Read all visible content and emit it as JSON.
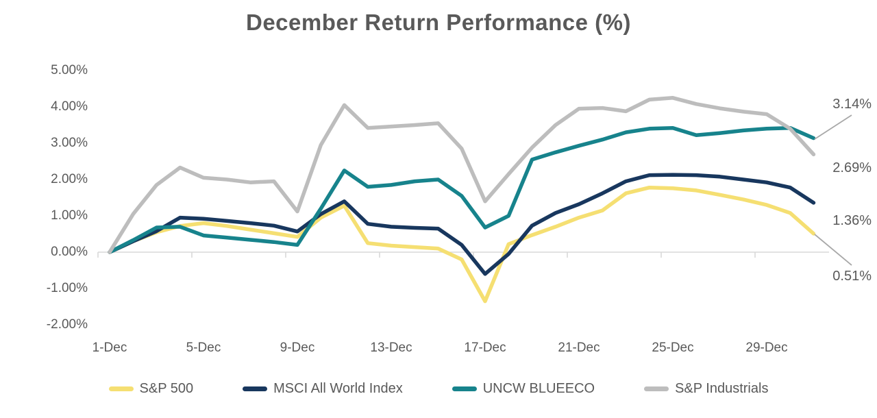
{
  "chart_data": {
    "type": "line",
    "title": "December Return Performance (%)",
    "xlabel": "",
    "ylabel": "",
    "ylim": [
      -2,
      5
    ],
    "grid": false,
    "legend_position": "bottom",
    "y_ticks": [
      "5.00%",
      "4.00%",
      "3.00%",
      "2.00%",
      "1.00%",
      "0.00%",
      "-1.00%",
      "-2.00%"
    ],
    "x_tick_labels": [
      "1-Dec",
      "5-Dec",
      "9-Dec",
      "13-Dec",
      "17-Dec",
      "21-Dec",
      "25-Dec",
      "29-Dec"
    ],
    "x_tick_days": [
      1,
      5,
      9,
      13,
      17,
      21,
      25,
      29
    ],
    "categories": [
      "1-Dec",
      "2-Dec",
      "3-Dec",
      "4-Dec",
      "5-Dec",
      "6-Dec",
      "7-Dec",
      "8-Dec",
      "9-Dec",
      "10-Dec",
      "11-Dec",
      "12-Dec",
      "13-Dec",
      "14-Dec",
      "15-Dec",
      "16-Dec",
      "17-Dec",
      "18-Dec",
      "19-Dec",
      "20-Dec",
      "21-Dec",
      "22-Dec",
      "23-Dec",
      "24-Dec",
      "25-Dec",
      "26-Dec",
      "27-Dec",
      "28-Dec",
      "29-Dec",
      "30-Dec",
      "31-Dec"
    ],
    "series": [
      {
        "name": "S&P 500",
        "color": "#F5DF72",
        "end_label": "0.51%",
        "values": [
          0.0,
          0.3,
          0.55,
          0.72,
          0.8,
          0.72,
          0.62,
          0.52,
          0.42,
          0.95,
          1.28,
          0.25,
          0.18,
          0.14,
          0.1,
          -0.2,
          -1.35,
          0.22,
          0.47,
          0.7,
          0.95,
          1.15,
          1.62,
          1.78,
          1.76,
          1.7,
          1.58,
          1.45,
          1.3,
          1.08,
          0.51
        ]
      },
      {
        "name": "MSCI All World Index",
        "color": "#18375E",
        "end_label": "1.36%",
        "values": [
          0.0,
          0.3,
          0.58,
          0.95,
          0.92,
          0.86,
          0.8,
          0.73,
          0.57,
          1.05,
          1.4,
          0.78,
          0.7,
          0.67,
          0.65,
          0.2,
          -0.6,
          -0.05,
          0.73,
          1.08,
          1.32,
          1.62,
          1.95,
          2.12,
          2.13,
          2.12,
          2.08,
          2.0,
          1.92,
          1.78,
          1.36
        ]
      },
      {
        "name": "UNCW BLUEECO",
        "color": "#17838C",
        "end_label": "3.14%",
        "values": [
          0.0,
          0.33,
          0.68,
          0.7,
          0.46,
          0.4,
          0.34,
          0.28,
          0.2,
          1.2,
          2.25,
          1.8,
          1.85,
          1.95,
          2.0,
          1.55,
          0.68,
          1.0,
          2.55,
          2.75,
          2.93,
          3.1,
          3.3,
          3.4,
          3.42,
          3.22,
          3.28,
          3.35,
          3.4,
          3.42,
          3.14
        ]
      },
      {
        "name": "S&P Industrials",
        "color": "#BDBDBD",
        "end_label": "2.69%",
        "values": [
          0.0,
          1.05,
          1.85,
          2.33,
          2.05,
          2.0,
          1.92,
          1.95,
          1.12,
          2.95,
          4.05,
          3.42,
          3.46,
          3.5,
          3.55,
          2.85,
          1.4,
          2.15,
          2.88,
          3.5,
          3.95,
          3.97,
          3.88,
          4.2,
          4.25,
          4.08,
          3.96,
          3.87,
          3.8,
          3.4,
          2.69
        ]
      }
    ],
    "end_labels_order": [
      "3.14%",
      "2.69%",
      "1.36%",
      "0.51%"
    ],
    "colors": {
      "text": "#595959",
      "axis_line": "#D9D9D9",
      "leader_line": "#A8A8A8",
      "background": "#FFFFFF"
    }
  }
}
